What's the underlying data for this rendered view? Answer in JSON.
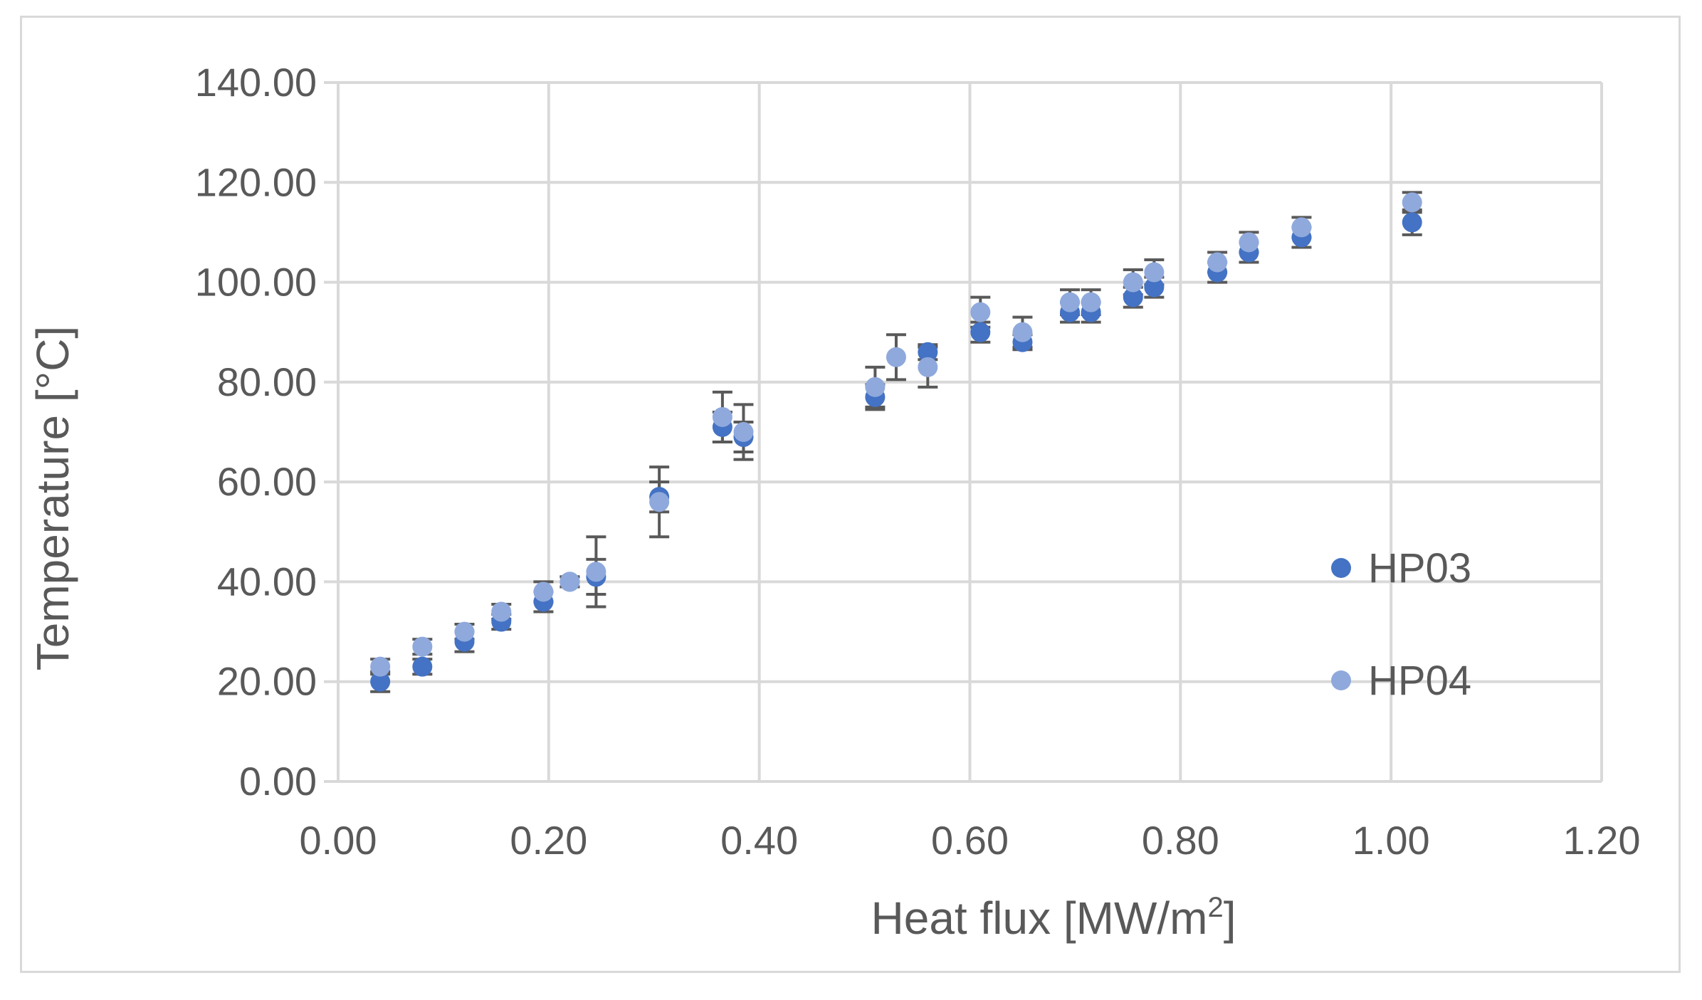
{
  "chart_data": {
    "type": "scatter",
    "title": "",
    "xlabel": "Heat flux [MW/m²]",
    "xlabel_main": "Heat flux [MW/m",
    "xlabel_sup": "2",
    "xlabel_end": "]",
    "ylabel": "Temperature [°C]",
    "xlim": [
      0,
      1.2
    ],
    "ylim": [
      0,
      140
    ],
    "x_ticks": [
      0,
      0.2,
      0.4,
      0.6,
      0.8,
      1.0,
      1.2
    ],
    "x_tick_labels": [
      "0.00",
      "0.20",
      "0.40",
      "0.60",
      "0.80",
      "1.00",
      "1.20"
    ],
    "y_ticks": [
      0,
      20,
      40,
      60,
      80,
      100,
      120,
      140
    ],
    "y_tick_labels": [
      "0.00",
      "20.00",
      "40.00",
      "60.00",
      "80.00",
      "100.00",
      "120.00",
      "140.00"
    ],
    "grid": true,
    "legend_position": "right",
    "series": [
      {
        "name": "HP03",
        "color": "#4472c4",
        "points": [
          {
            "x": 0.04,
            "y": 20,
            "err": 2.0
          },
          {
            "x": 0.08,
            "y": 23,
            "err": 1.5
          },
          {
            "x": 0.12,
            "y": 28,
            "err": 2.0
          },
          {
            "x": 0.155,
            "y": 32,
            "err": 1.5
          },
          {
            "x": 0.195,
            "y": 36,
            "err": 2.0
          },
          {
            "x": 0.22,
            "y": 40,
            "err": 1.0
          },
          {
            "x": 0.245,
            "y": 41,
            "err": 3.5
          },
          {
            "x": 0.305,
            "y": 57,
            "err": 3.0
          },
          {
            "x": 0.365,
            "y": 71,
            "err": 3.0
          },
          {
            "x": 0.385,
            "y": 69,
            "err": 3.0
          },
          {
            "x": 0.51,
            "y": 77,
            "err": 2.5
          },
          {
            "x": 0.56,
            "y": 86,
            "err": 1.5
          },
          {
            "x": 0.61,
            "y": 90,
            "err": 2.0
          },
          {
            "x": 0.65,
            "y": 88,
            "err": 1.5
          },
          {
            "x": 0.695,
            "y": 94,
            "err": 2.0
          },
          {
            "x": 0.715,
            "y": 94,
            "err": 2.0
          },
          {
            "x": 0.755,
            "y": 97,
            "err": 2.0
          },
          {
            "x": 0.775,
            "y": 99,
            "err": 2.0
          },
          {
            "x": 0.835,
            "y": 102,
            "err": 2.0
          },
          {
            "x": 0.865,
            "y": 106,
            "err": 2.0
          },
          {
            "x": 0.915,
            "y": 109,
            "err": 2.0
          },
          {
            "x": 1.02,
            "y": 112,
            "err": 2.5
          }
        ]
      },
      {
        "name": "HP04",
        "color": "#8fa9dc",
        "points": [
          {
            "x": 0.04,
            "y": 23,
            "err": 1.5
          },
          {
            "x": 0.08,
            "y": 27,
            "err": 1.5
          },
          {
            "x": 0.12,
            "y": 30,
            "err": 1.5
          },
          {
            "x": 0.155,
            "y": 34,
            "err": 1.5
          },
          {
            "x": 0.195,
            "y": 38,
            "err": 2.0
          },
          {
            "x": 0.22,
            "y": 40,
            "err": 1.0
          },
          {
            "x": 0.245,
            "y": 42,
            "err": 7.0
          },
          {
            "x": 0.305,
            "y": 56,
            "err": 7.0
          },
          {
            "x": 0.365,
            "y": 73,
            "err": 5.0
          },
          {
            "x": 0.385,
            "y": 70,
            "err": 5.5
          },
          {
            "x": 0.51,
            "y": 79,
            "err": 4.0
          },
          {
            "x": 0.53,
            "y": 85,
            "err": 4.5
          },
          {
            "x": 0.56,
            "y": 83,
            "err": 4.0
          },
          {
            "x": 0.61,
            "y": 94,
            "err": 3.0
          },
          {
            "x": 0.65,
            "y": 90,
            "err": 3.0
          },
          {
            "x": 0.695,
            "y": 96,
            "err": 2.5
          },
          {
            "x": 0.715,
            "y": 96,
            "err": 2.5
          },
          {
            "x": 0.755,
            "y": 100,
            "err": 2.5
          },
          {
            "x": 0.775,
            "y": 102,
            "err": 2.5
          },
          {
            "x": 0.835,
            "y": 104,
            "err": 2.0
          },
          {
            "x": 0.865,
            "y": 108,
            "err": 2.0
          },
          {
            "x": 0.915,
            "y": 111,
            "err": 2.0
          },
          {
            "x": 1.02,
            "y": 116,
            "err": 2.0
          }
        ]
      }
    ]
  }
}
